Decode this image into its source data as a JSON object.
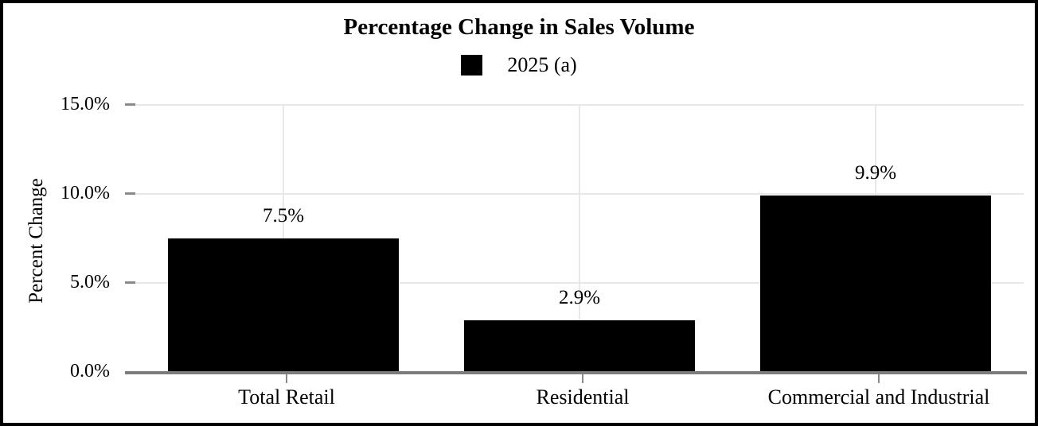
{
  "figure": {
    "background_color": "#ffffff",
    "border_color": "#000000"
  },
  "legend": {
    "items": [
      {
        "label": "2025 (a)",
        "swatch_color": "#000000"
      }
    ]
  },
  "chart_data": {
    "type": "bar",
    "title": "Percentage Change in Sales Volume",
    "xlabel": "",
    "ylabel": "Percent Change",
    "categories": [
      "Total Retail",
      "Residential",
      "Commercial and Industrial"
    ],
    "series": [
      {
        "name": "2025 (a)",
        "values": [
          7.5,
          2.9,
          9.9
        ]
      }
    ],
    "value_labels": [
      "7.5%",
      "2.9%",
      "9.9%"
    ],
    "ylim": [
      0,
      15
    ],
    "ytick_values": [
      0,
      5,
      10,
      15
    ],
    "ytick_labels": [
      "0.0%",
      "5.0%",
      "10.0%",
      "15.0%"
    ],
    "grid": "on",
    "legend_position": "top-center",
    "bar_color": "#000000",
    "axis_color": "#7d7d7d",
    "tick_color": "#8a8a8a",
    "gridline_color": "#e8e8e8"
  }
}
